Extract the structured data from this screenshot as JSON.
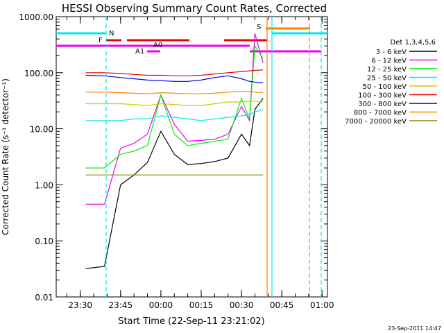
{
  "chart_data": {
    "type": "line",
    "title": "HESSI Observing Summary Count Rates, Corrected",
    "xlabel": "Start Time (22-Sep-11 23:21:02)",
    "ylabel": "Corrected Count Rate (s⁻¹ detector⁻¹)",
    "yscale": "log",
    "ylim": [
      0.01,
      1000
    ],
    "xlim_minutes_axis": [
      "23:21:02",
      "01:02"
    ],
    "x_tick_labels": [
      "23:30",
      "23:45",
      "00:00",
      "00:15",
      "00:30",
      "00:45",
      "01:00"
    ],
    "y_tick_labels": [
      "1000.00",
      "100.00",
      "10.00",
      "1.00",
      "0.10",
      "0.01"
    ],
    "y_tick_values": [
      1000,
      100,
      10,
      1,
      0.1,
      0.01
    ],
    "grid": false,
    "legend_title": "Det 1,3,4,5,6",
    "legend_placement": "right",
    "timestamp": "23-Sep-2011 14:47",
    "flags": [
      {
        "label": "N",
        "color": "#00e5ee"
      },
      {
        "label": "F",
        "color": "#ee0000"
      },
      {
        "label": "A0",
        "color": "#ee00ee"
      },
      {
        "label": "A1",
        "color": "#ee00ee"
      },
      {
        "label": "S",
        "color": "#ff8000"
      }
    ],
    "x": [
      "23:32",
      "23:39",
      "23:45",
      "23:50",
      "23:55",
      "00:00",
      "00:05",
      "00:10",
      "00:15",
      "00:20",
      "00:25",
      "00:30",
      "00:33",
      "00:35",
      "00:38"
    ],
    "series": [
      {
        "name": "3 - 6 keV",
        "color": "#000000",
        "values": [
          0.032,
          0.035,
          1.0,
          1.5,
          2.5,
          9,
          3.5,
          2.3,
          2.4,
          2.6,
          3.0,
          8,
          5,
          22,
          35
        ]
      },
      {
        "name": "6 - 12 keV",
        "color": "#ee00ee",
        "values": [
          0.45,
          0.45,
          4.5,
          5.5,
          8,
          40,
          12,
          6,
          6.2,
          6.5,
          8,
          25,
          14,
          500,
          150
        ]
      },
      {
        "name": "12 - 25 keV",
        "color": "#00ee00",
        "values": [
          2.0,
          2.0,
          3.5,
          4.0,
          5,
          40,
          8,
          5,
          5.5,
          6,
          6.5,
          35,
          15,
          300,
          180
        ]
      },
      {
        "name": "25 - 50 keV",
        "color": "#00e5ee",
        "values": [
          14,
          14,
          14,
          15,
          15,
          17,
          16,
          15,
          14,
          15,
          16,
          17,
          18,
          20,
          22
        ]
      },
      {
        "name": "50 - 100 keV",
        "color": "#cccc00",
        "values": [
          28,
          28,
          28,
          27,
          26,
          28,
          27,
          26,
          26,
          28,
          30,
          30,
          31,
          31,
          30
        ]
      },
      {
        "name": "100 - 300 keV",
        "color": "#ee0000",
        "values": [
          100,
          100,
          97,
          93,
          90,
          90,
          88,
          88,
          90,
          95,
          100,
          105,
          108,
          110,
          112
        ]
      },
      {
        "name": "300 - 800 keV",
        "color": "#0000ee",
        "values": [
          90,
          88,
          82,
          78,
          74,
          72,
          70,
          70,
          74,
          82,
          88,
          78,
          70,
          68,
          66
        ]
      },
      {
        "name": "800 - 7000 keV",
        "color": "#ff8000",
        "values": [
          45,
          45,
          44,
          43,
          42,
          44,
          43,
          42,
          42,
          43,
          45,
          46,
          46,
          45,
          44
        ]
      },
      {
        "name": "7000 - 20000 keV",
        "color": "#888800",
        "values": [
          1.5,
          1.5,
          1.5,
          1.5,
          1.5,
          1.5,
          1.5,
          1.5,
          1.5,
          1.5,
          1.5,
          1.5,
          1.5,
          1.5,
          1.5
        ]
      }
    ]
  }
}
